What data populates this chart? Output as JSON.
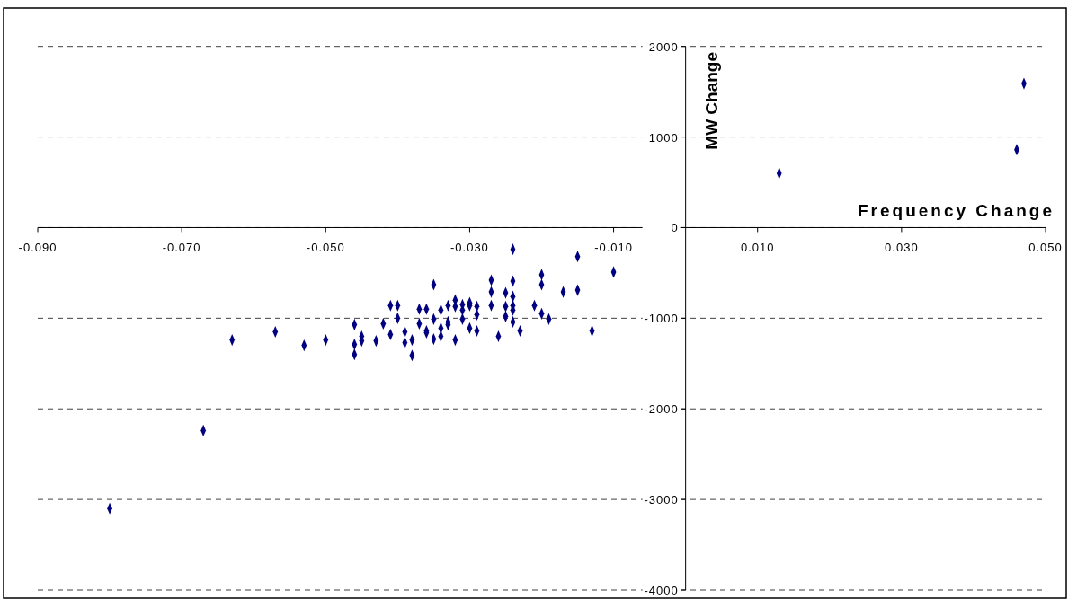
{
  "chart_data": {
    "type": "scatter",
    "xlabel": "Frequency Change",
    "ylabel": "MW Change",
    "xlim": [
      -0.09,
      0.05
    ],
    "xticks": [
      {
        "value": -0.09,
        "label": "-0.090"
      },
      {
        "value": -0.07,
        "label": "-0.070"
      },
      {
        "value": -0.05,
        "label": "-0.050"
      },
      {
        "value": -0.03,
        "label": "-0.030"
      },
      {
        "value": -0.01,
        "label": "-0.010"
      },
      {
        "value": 0.01,
        "label": "0.010"
      },
      {
        "value": 0.03,
        "label": "0.030"
      },
      {
        "value": 0.05,
        "label": "0.050"
      }
    ],
    "ylim": [
      -4000,
      2000
    ],
    "yticks": [
      -4000,
      -3000,
      -2000,
      -1000,
      0,
      1000,
      2000
    ],
    "grid": "y",
    "marker": "diamond",
    "series": [
      {
        "color": "#000080",
        "x": [
          -0.08,
          -0.067,
          -0.063,
          -0.057,
          -0.053,
          -0.05,
          -0.046,
          -0.045,
          -0.046,
          -0.045,
          -0.046,
          -0.043,
          -0.042,
          -0.041,
          -0.041,
          -0.04,
          -0.04,
          -0.039,
          -0.039,
          -0.038,
          -0.038,
          -0.037,
          -0.036,
          -0.037,
          -0.036,
          -0.035,
          -0.035,
          -0.035,
          -0.036,
          -0.034,
          -0.033,
          -0.032,
          -0.032,
          -0.031,
          -0.03,
          -0.03,
          -0.029,
          -0.029,
          -0.031,
          -0.033,
          -0.033,
          -0.034,
          -0.034,
          -0.031,
          -0.03,
          -0.029,
          -0.032,
          -0.027,
          -0.027,
          -0.027,
          -0.025,
          -0.024,
          -0.024,
          -0.025,
          -0.024,
          -0.024,
          -0.025,
          -0.024,
          -0.026,
          -0.023,
          -0.024,
          -0.02,
          -0.02,
          -0.021,
          -0.02,
          -0.019,
          -0.017,
          -0.015,
          -0.015,
          -0.013,
          -0.01,
          0.013,
          0.046,
          0.047
        ],
        "values": [
          -3100,
          -2240,
          -1240,
          -1150,
          -1300,
          -1240,
          -1070,
          -1200,
          -1290,
          -1250,
          -1400,
          -1250,
          -1060,
          -1180,
          -860,
          -860,
          -1000,
          -1150,
          -1270,
          -1240,
          -1410,
          -900,
          -900,
          -1060,
          -1140,
          -630,
          -1010,
          -1230,
          -1160,
          -910,
          -860,
          -800,
          -870,
          -850,
          -830,
          -860,
          -870,
          -960,
          -910,
          -1040,
          -1070,
          -1110,
          -1200,
          -1010,
          -1110,
          -1140,
          -1240,
          -580,
          -710,
          -860,
          -720,
          -590,
          -760,
          -870,
          -860,
          -910,
          -980,
          -1040,
          -1200,
          -1140,
          -240,
          -520,
          -630,
          -860,
          -950,
          -1010,
          -710,
          -690,
          -320,
          -1140,
          -490,
          600,
          860,
          1590
        ]
      }
    ]
  }
}
